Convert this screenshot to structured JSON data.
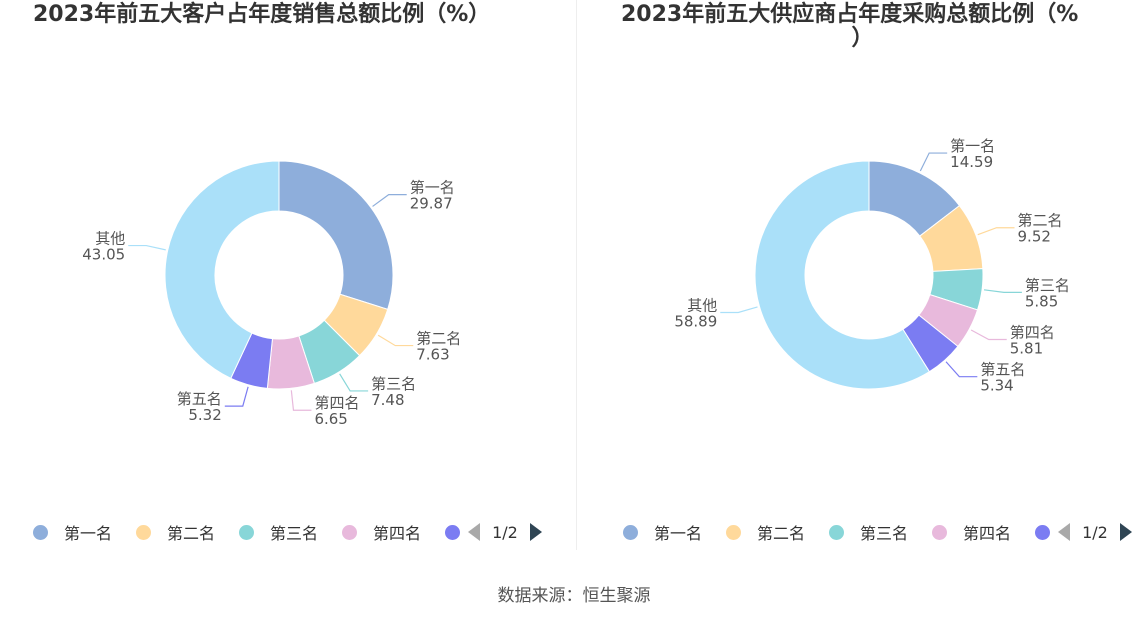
{
  "charts": {
    "left": {
      "title": "2023年前五大客户占年度销售总额比例（%）",
      "title_wrap": ""
    },
    "right": {
      "title": "2023年前五大供应商占年度采购总额比例（%",
      "title_wrap": "）"
    }
  },
  "legend": {
    "items": [
      "第一名",
      "第二名",
      "第三名",
      "第四名"
    ],
    "page": "1/2"
  },
  "colors": {
    "第一名": "#8eaedb",
    "第二名": "#ffd99b",
    "第三名": "#88d6d8",
    "第四名": "#e8b9dc",
    "第五名": "#7b7cf2",
    "其他": "#aae0f9"
  },
  "source": "数据来源：恒生聚源",
  "chart_data": [
    {
      "type": "pie",
      "title": "2023年前五大客户占年度销售总额比例（%）",
      "labels": [
        "第一名",
        "第二名",
        "第三名",
        "第四名",
        "第五名",
        "其他"
      ],
      "values": [
        29.87,
        7.63,
        7.48,
        6.65,
        5.32,
        43.05
      ],
      "value_labels": [
        "29.87",
        "7.63",
        "7.48",
        "6.65",
        "5.32",
        "43.05"
      ],
      "legend": "bottom"
    },
    {
      "type": "pie",
      "title": "2023年前五大供应商占年度采购总额比例（%）",
      "labels": [
        "第一名",
        "第二名",
        "第三名",
        "第四名",
        "第五名",
        "其他"
      ],
      "values": [
        14.59,
        9.52,
        5.85,
        5.81,
        5.34,
        58.89
      ],
      "value_labels": [
        "14.59",
        "9.52",
        "5.85",
        "5.81",
        "5.34",
        "58.89"
      ],
      "legend": "bottom"
    }
  ]
}
